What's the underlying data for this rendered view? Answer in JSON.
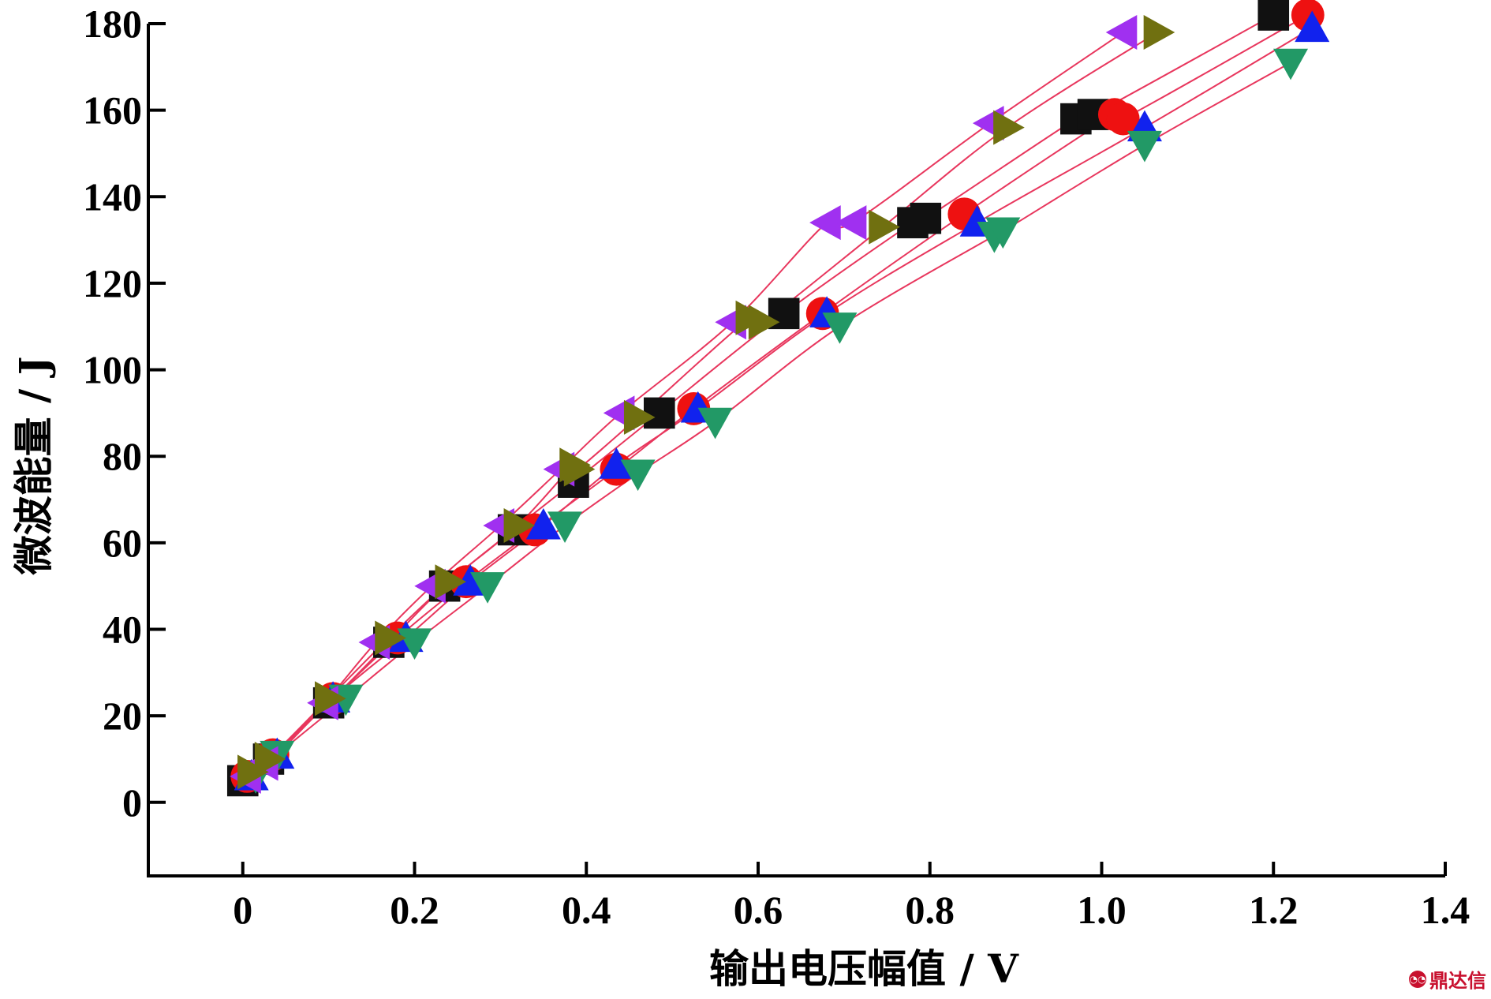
{
  "chart_data": {
    "type": "scatter",
    "title": "",
    "xlabel": "输出电压幅值 / V",
    "ylabel": "微波能量 / J",
    "xlim": [
      -0.11,
      1.4
    ],
    "ylim": [
      -17,
      180
    ],
    "xticks": [
      0,
      0.2,
      0.4,
      0.6,
      0.8,
      1.0,
      1.2,
      1.4
    ],
    "xtick_labels": [
      "0",
      "0.2",
      "0.4",
      "0.6",
      "0.8",
      "1.0",
      "1.2",
      "1.4"
    ],
    "yticks": [
      0,
      20,
      40,
      60,
      80,
      100,
      120,
      140,
      160,
      180
    ],
    "ytick_labels": [
      "0",
      "20",
      "40",
      "60",
      "80",
      "100",
      "120",
      "140",
      "160",
      "180"
    ],
    "grid": false,
    "legend": "none",
    "fit_line_color": "#e8365d",
    "series": [
      {
        "marker": "square",
        "color": "#111111",
        "x": [
          0.0,
          0.03,
          0.1,
          0.17,
          0.235,
          0.315,
          0.385,
          0.485,
          0.63,
          0.78,
          0.795,
          0.97,
          0.99,
          1.2
        ],
        "y": [
          5,
          10,
          23,
          37,
          50,
          63,
          74,
          90,
          113,
          134,
          135,
          158,
          159,
          182
        ]
      },
      {
        "marker": "circle",
        "color": "#ee1111",
        "x": [
          0.005,
          0.035,
          0.105,
          0.18,
          0.26,
          0.34,
          0.435,
          0.525,
          0.675,
          0.84,
          1.015,
          1.025,
          1.24
        ],
        "y": [
          6,
          11,
          24,
          38,
          51,
          63,
          77,
          91,
          113,
          136,
          159,
          158,
          182
        ]
      },
      {
        "marker": "triangle-up",
        "color": "#1122ee",
        "x": [
          0.01,
          0.04,
          0.105,
          0.19,
          0.265,
          0.35,
          0.435,
          0.53,
          0.68,
          0.855,
          1.05,
          1.245
        ],
        "y": [
          6,
          11,
          24,
          38,
          51,
          64,
          78,
          91,
          113,
          134,
          156,
          179
        ]
      },
      {
        "marker": "triangle-down",
        "color": "#229966",
        "x": [
          0.015,
          0.04,
          0.12,
          0.2,
          0.285,
          0.375,
          0.46,
          0.55,
          0.695,
          0.875,
          0.885,
          1.05,
          1.22
        ],
        "y": [
          6,
          11,
          24,
          37,
          50,
          64,
          76,
          88,
          110,
          131,
          132,
          152,
          171
        ]
      },
      {
        "marker": "triangle-left",
        "color": "#a030f0",
        "x": [
          0.005,
          0.025,
          0.095,
          0.155,
          0.22,
          0.3,
          0.37,
          0.44,
          0.57,
          0.68,
          0.71,
          0.87,
          1.025
        ],
        "y": [
          6,
          9,
          23,
          37,
          50,
          64,
          77,
          90,
          111,
          134,
          134,
          157,
          178
        ]
      },
      {
        "marker": "triangle-right",
        "color": "#707010",
        "x": [
          0.01,
          0.03,
          0.1,
          0.17,
          0.24,
          0.32,
          0.385,
          0.39,
          0.46,
          0.59,
          0.605,
          0.745,
          0.89,
          1.065
        ],
        "y": [
          7,
          10,
          24,
          38,
          51,
          64,
          78,
          77,
          89,
          112,
          111,
          133,
          156,
          178
        ]
      }
    ]
  },
  "watermark": {
    "text": "鼎达信",
    "icon": "chat-bubble-icon"
  }
}
